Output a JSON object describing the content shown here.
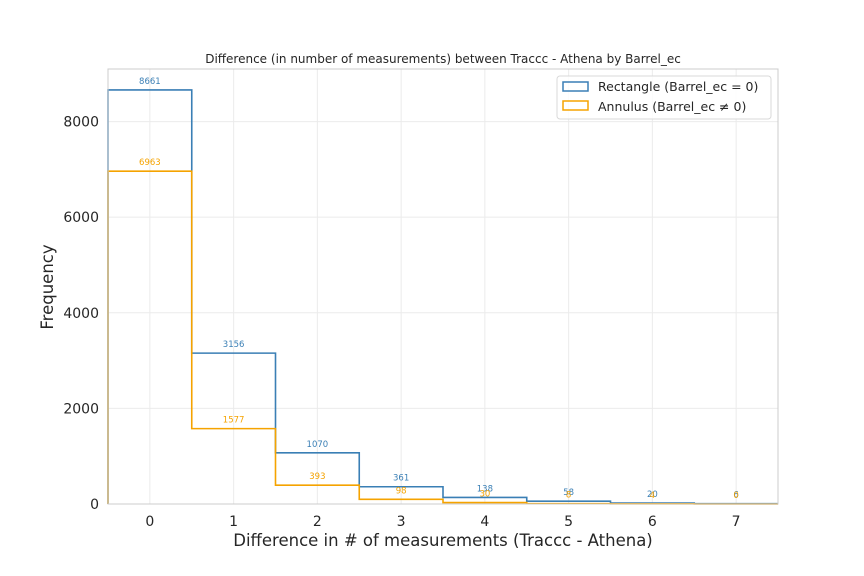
{
  "chart_data": {
    "type": "histogram-step",
    "title": "Difference (in number of measurements) between Traccc - Athena by Barrel_ec",
    "xlabel": "Difference in # of measurements (Traccc - Athena)",
    "ylabel": "Frequency",
    "categories": [
      0,
      1,
      2,
      3,
      4,
      5,
      6,
      7
    ],
    "xlim": [
      -0.5,
      7.5
    ],
    "ylim": [
      0,
      9100
    ],
    "yticks": [
      0,
      2000,
      4000,
      6000,
      8000
    ],
    "grid": true,
    "legend_position": "top-right",
    "series": [
      {
        "name": "Rectangle (Barrel_ec = 0)",
        "color": "#3a7fb5",
        "values": [
          8661,
          3156,
          1070,
          361,
          138,
          58,
          20,
          6
        ],
        "labels": [
          "8661",
          "3156",
          "1070",
          "361",
          "138",
          "58",
          "20",
          "6"
        ]
      },
      {
        "name": "Annulus (Barrel_ec ≠ 0)",
        "color": "#f5a300",
        "values": [
          6963,
          1577,
          393,
          98,
          30,
          8,
          4,
          0
        ],
        "labels": [
          "6963",
          "1577",
          "393",
          "98",
          "30",
          "8",
          "4",
          "0"
        ]
      }
    ]
  }
}
